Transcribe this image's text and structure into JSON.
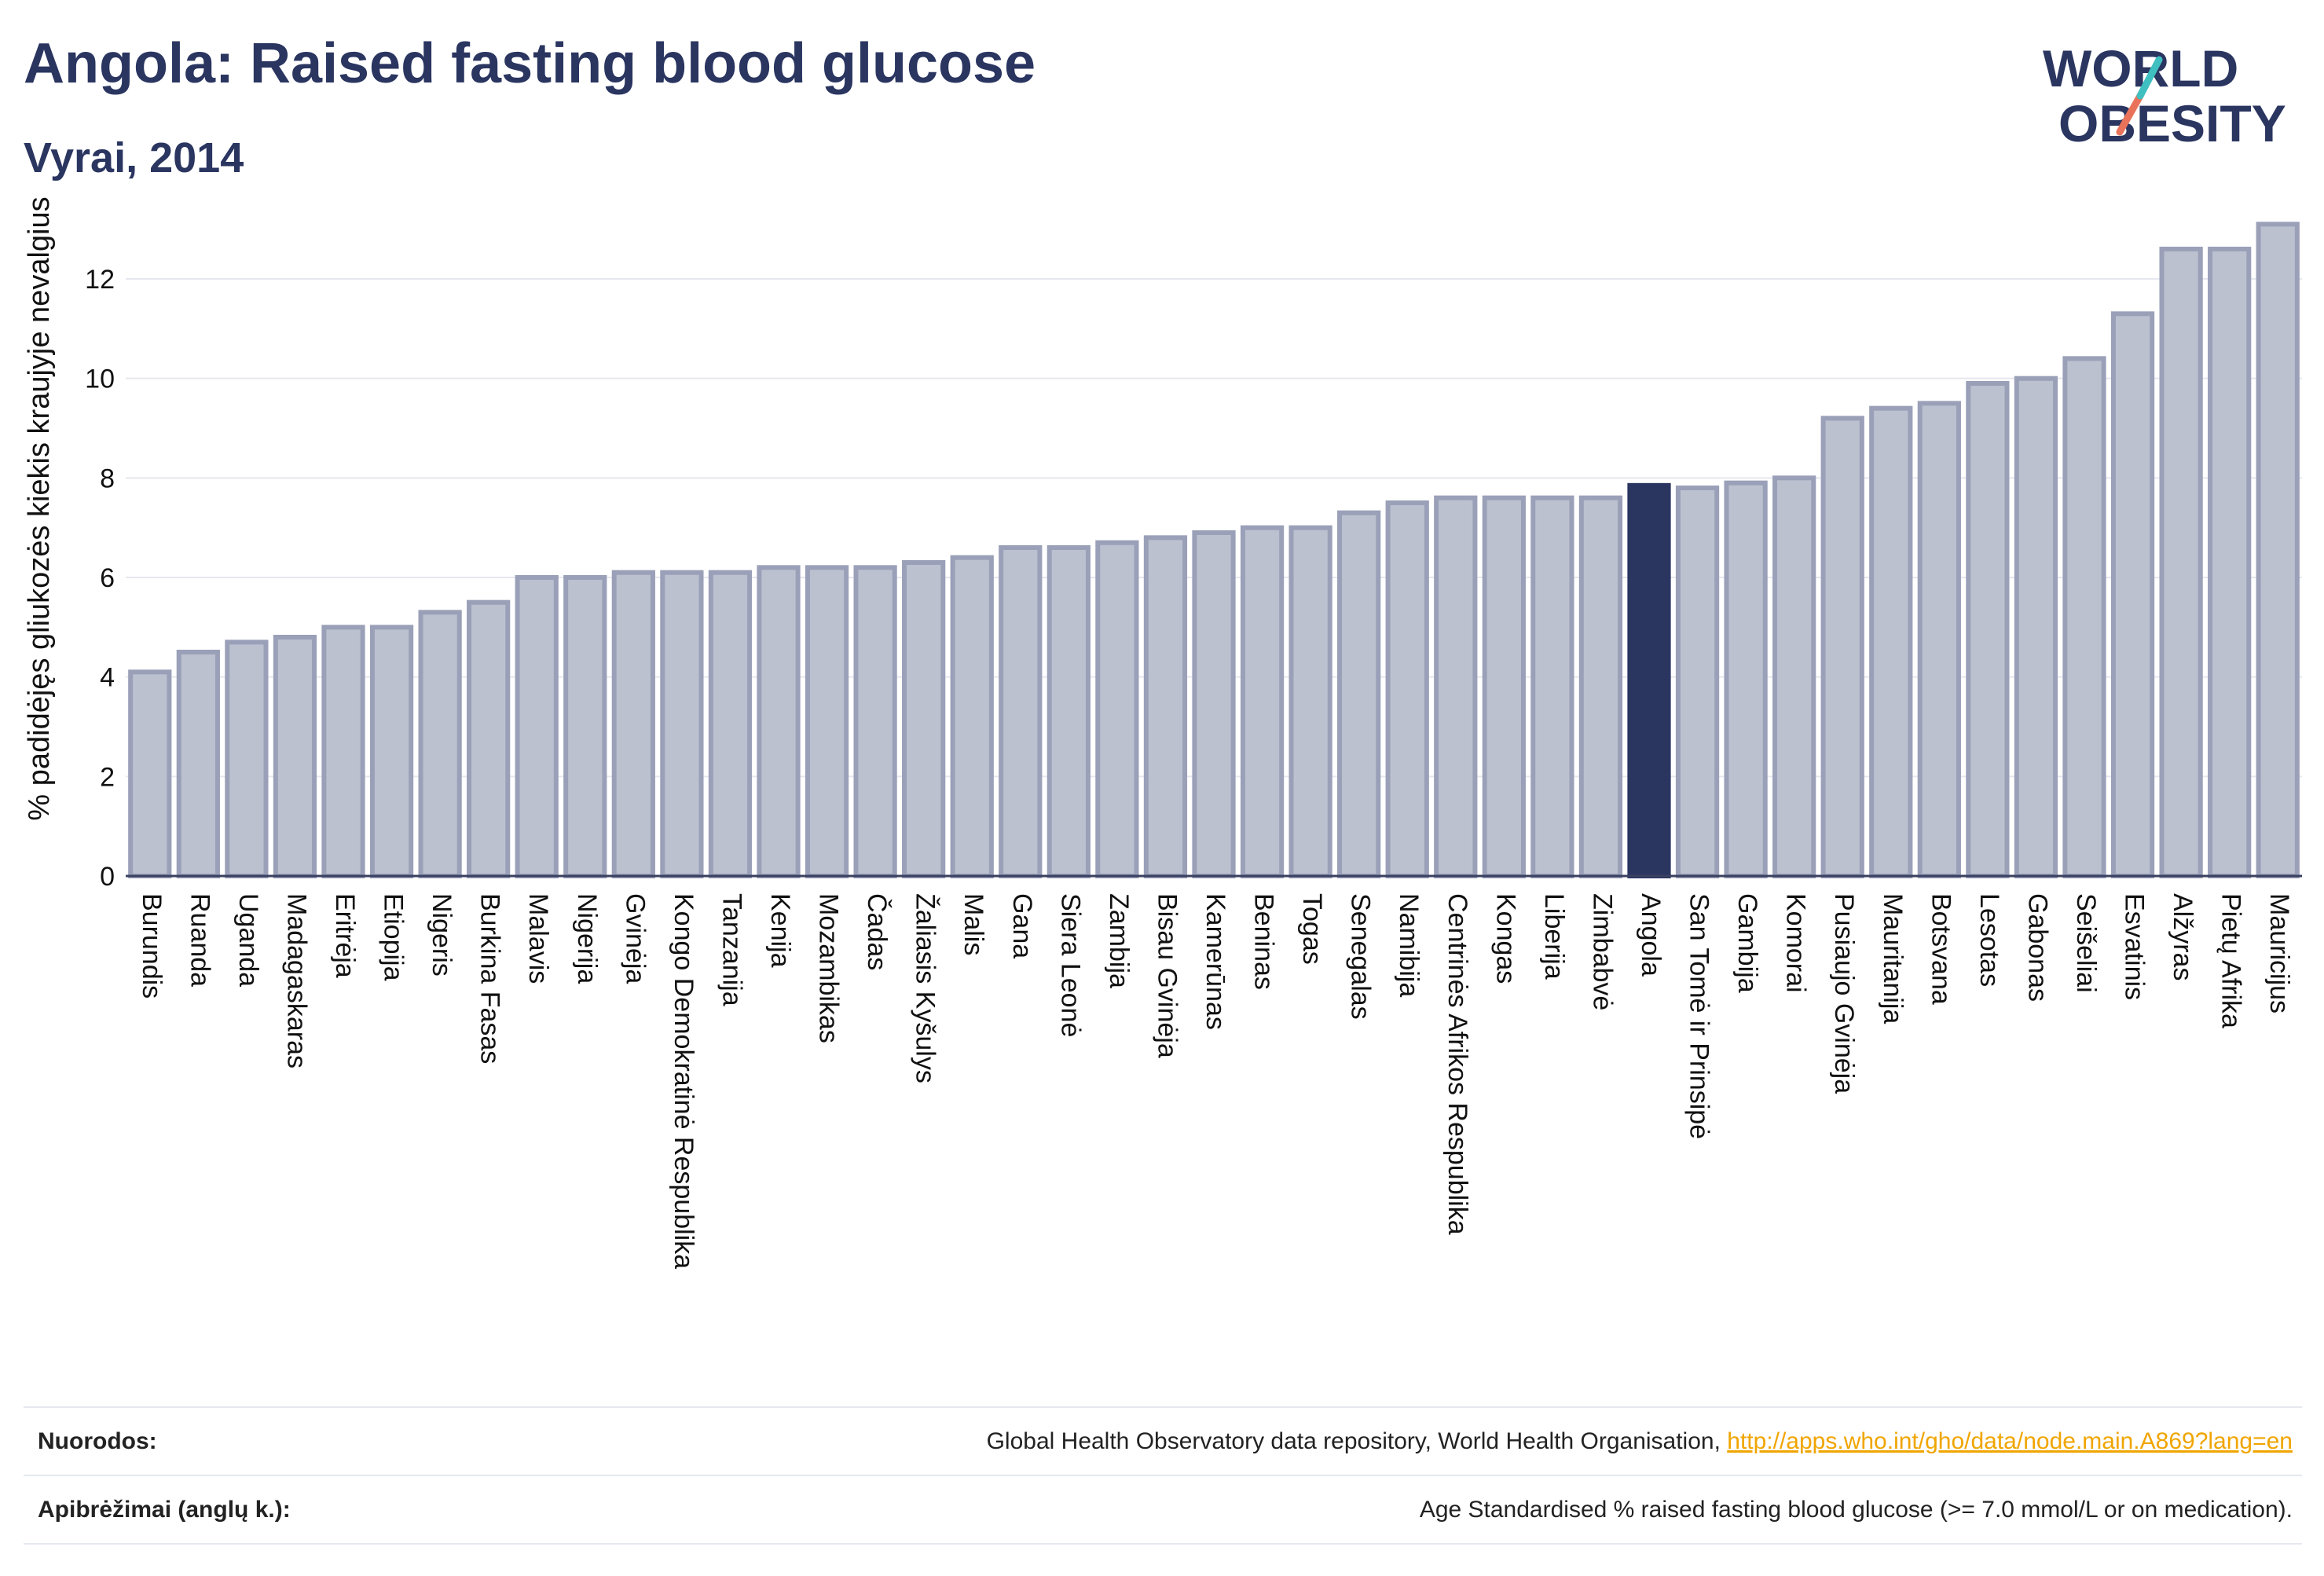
{
  "header": {
    "title": "Angola: Raised fasting blood glucose",
    "subtitle": "Vyrai, 2014"
  },
  "logo": {
    "line1": "WORLD",
    "line2": "OBESITY"
  },
  "chart_data": {
    "type": "bar",
    "ylabel": "% padidėjęs gliukozės kiekis kraujyje nevalgius",
    "ylim": [
      0,
      13.5
    ],
    "yticks": [
      0,
      2,
      4,
      6,
      8,
      10,
      12
    ],
    "highlight": "Angola",
    "colors": {
      "bar": "#bcc1d0",
      "bar_edge": "#9aa0b8",
      "highlight": "#2a3560",
      "grid": "#e6e8ef"
    },
    "categories": [
      "Burundis",
      "Ruanda",
      "Uganda",
      "Madagaskaras",
      "Eritrėja",
      "Etiopija",
      "Nigeris",
      "Burkina Fasas",
      "Malavis",
      "Nigerija",
      "Gvinėja",
      "Kongo Demokratinė Respublika",
      "Tanzanija",
      "Kenija",
      "Mozambikas",
      "Čadas",
      "Žaliasis Kyšulys",
      "Malis",
      "Gana",
      "Siera Leonė",
      "Zambija",
      "Bisau Gvinėja",
      "Kamerūnas",
      "Beninas",
      "Togas",
      "Senegalas",
      "Namibija",
      "Centrinės Afrikos Respublika",
      "Kongas",
      "Liberija",
      "Zimbabvė",
      "Angola",
      "San Tomė ir Prinsipė",
      "Gambija",
      "Komorai",
      "Pusiaujo Gvinėja",
      "Mauritanija",
      "Botsvana",
      "Lesotas",
      "Gabonas",
      "Seišeliai",
      "Esvatinis",
      "Alžyras",
      "Pietų Afrika",
      "Mauricijus"
    ],
    "values": [
      4.1,
      4.5,
      4.7,
      4.8,
      5.0,
      5.0,
      5.3,
      5.5,
      6.0,
      6.0,
      6.1,
      6.1,
      6.1,
      6.2,
      6.2,
      6.2,
      6.3,
      6.4,
      6.6,
      6.6,
      6.7,
      6.8,
      6.9,
      7.0,
      7.0,
      7.3,
      7.5,
      7.6,
      7.6,
      7.6,
      7.6,
      7.85,
      7.8,
      7.9,
      8.0,
      9.2,
      9.4,
      9.5,
      9.9,
      10.0,
      10.4,
      11.3,
      12.6,
      12.6,
      13.1
    ]
  },
  "footer": {
    "sources_label": "Nuorodos:",
    "sources_text": "Global Health Observatory data repository, World Health Organisation, ",
    "sources_link": "http://apps.who.int/gho/data/node.main.A869?lang=en",
    "definitions_label": "Apibrėžimai (anglų k.):",
    "definitions_text": "Age Standardised % raised fasting blood glucose (>= 7.0 mmol/L or on medication)."
  }
}
